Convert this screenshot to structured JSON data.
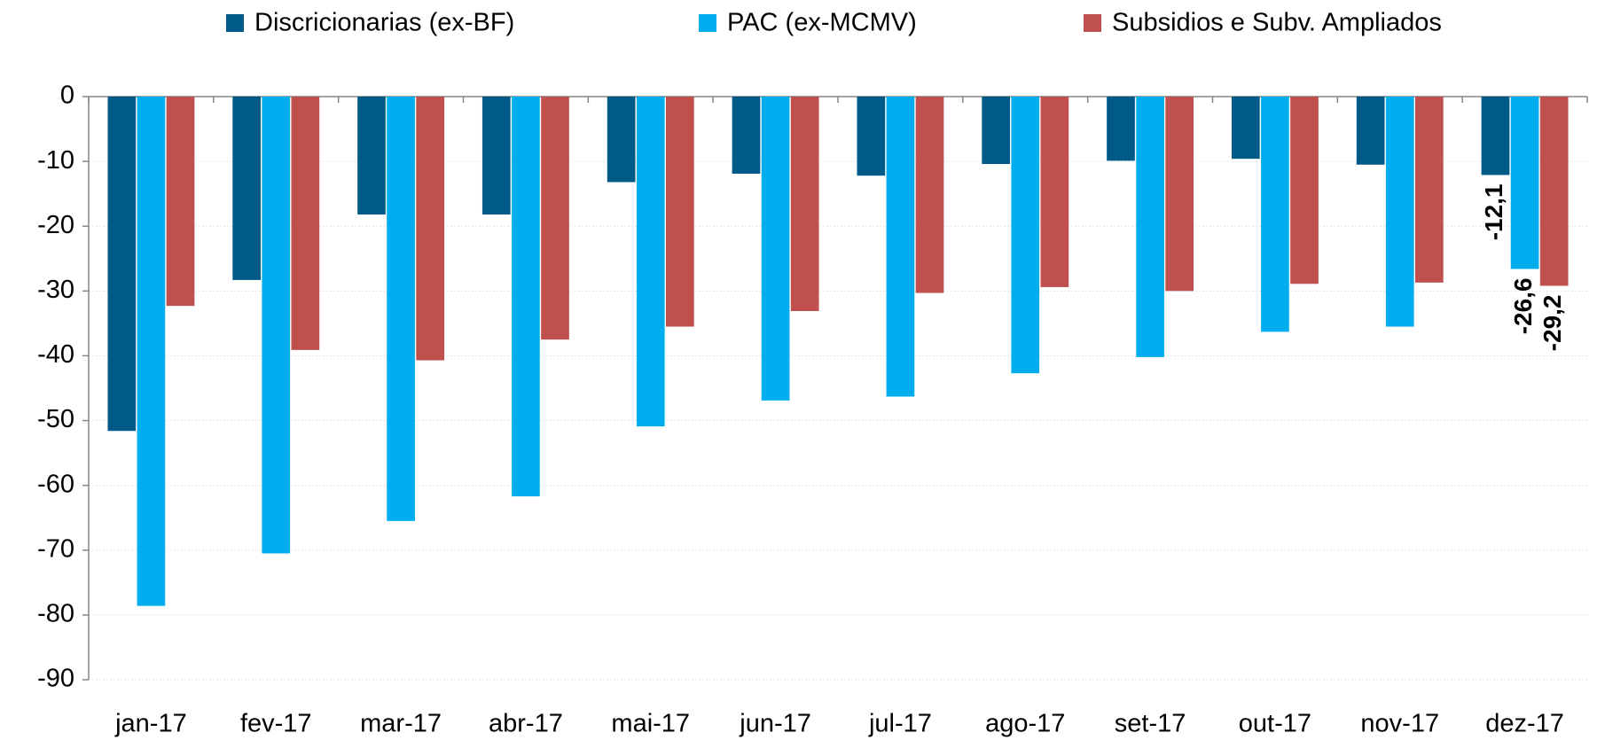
{
  "chart_data": {
    "type": "bar",
    "categories": [
      "jan-17",
      "fev-17",
      "mar-17",
      "abr-17",
      "mai-17",
      "jun-17",
      "jul-17",
      "ago-17",
      "set-17",
      "out-17",
      "nov-17",
      "dez-17"
    ],
    "series": [
      {
        "name": "Discricionarias (ex-BF)",
        "color": "#005a87",
        "values": [
          -51.6,
          -28.3,
          -18.2,
          -18.2,
          -13.2,
          -11.9,
          -12.2,
          -10.4,
          -9.9,
          -9.6,
          -10.5,
          -12.1
        ],
        "value_labels": [
          null,
          null,
          null,
          null,
          null,
          null,
          null,
          null,
          null,
          null,
          null,
          "-12,1"
        ]
      },
      {
        "name": "PAC (ex-MCMV)",
        "color": "#00aeef",
        "values": [
          -78.6,
          -70.5,
          -65.5,
          -61.7,
          -50.9,
          -46.9,
          -46.3,
          -42.7,
          -40.2,
          -36.3,
          -35.5,
          -26.6
        ],
        "value_labels": [
          null,
          null,
          null,
          null,
          null,
          null,
          null,
          null,
          null,
          null,
          null,
          "-26,6"
        ]
      },
      {
        "name": "Subsidios e Subv. Ampliados",
        "color": "#c0504d",
        "values": [
          -32.3,
          -39.1,
          -40.7,
          -37.5,
          -35.5,
          -33.1,
          -30.3,
          -29.4,
          -30.0,
          -28.9,
          -28.7,
          -29.2
        ],
        "value_labels": [
          null,
          null,
          null,
          null,
          null,
          null,
          null,
          null,
          null,
          null,
          null,
          "-29,2"
        ]
      }
    ],
    "ylim": [
      -90,
      0
    ],
    "yticks": [
      0,
      -10,
      -20,
      -30,
      -40,
      -50,
      -60,
      -70,
      -80,
      -90
    ],
    "grid": true,
    "legend": "top"
  }
}
